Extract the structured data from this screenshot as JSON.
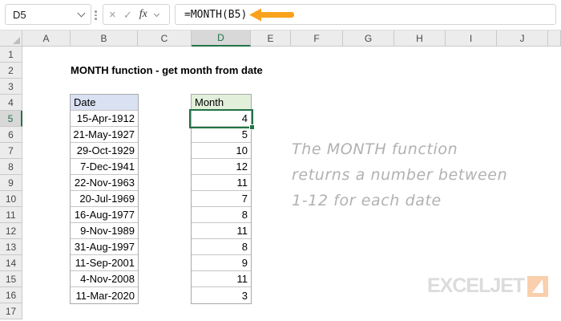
{
  "formula_bar": {
    "name_box_value": "D5",
    "formula": "=MONTH(B5)",
    "cancel_label": "×",
    "enter_label": "✓",
    "fx_label": "fx"
  },
  "grid": {
    "column_headers": [
      "A",
      "B",
      "C",
      "D",
      "E",
      "F",
      "G",
      "H",
      "I",
      "J"
    ],
    "row_headers": [
      "1",
      "2",
      "3",
      "4",
      "5",
      "6",
      "7",
      "8",
      "9",
      "10",
      "11",
      "12",
      "13",
      "14",
      "15",
      "16",
      "17"
    ],
    "selected_cell": "D5",
    "selected_column": "D",
    "selected_row": "5"
  },
  "sheet": {
    "title": "MONTH function - get month from date",
    "table": {
      "date_header": "Date",
      "month_header": "Month",
      "rows": [
        {
          "date": "15-Apr-1912",
          "month": "4"
        },
        {
          "date": "21-May-1927",
          "month": "5"
        },
        {
          "date": "29-Oct-1929",
          "month": "10"
        },
        {
          "date": "7-Dec-1941",
          "month": "12"
        },
        {
          "date": "22-Nov-1963",
          "month": "11"
        },
        {
          "date": "20-Jul-1969",
          "month": "7"
        },
        {
          "date": "16-Aug-1977",
          "month": "8"
        },
        {
          "date": "9-Nov-1989",
          "month": "11"
        },
        {
          "date": "31-Aug-1997",
          "month": "8"
        },
        {
          "date": "11-Sep-2001",
          "month": "9"
        },
        {
          "date": "4-Nov-2008",
          "month": "11"
        },
        {
          "date": "11-Mar-2020",
          "month": "3"
        }
      ]
    },
    "note_lines": [
      "The MONTH function",
      "returns a number between",
      "1-12 for each date"
    ],
    "logo_text": "EXCELJET"
  },
  "colors": {
    "accent_green": "#217346",
    "arrow_orange": "#faa21b",
    "date_header_fill": "#d9e1f2",
    "month_header_fill": "#e2efda",
    "note_gray": "#b1b1b1",
    "logo_gray": "#dcdcdc",
    "logo_square_orange": "#f9cfac"
  }
}
